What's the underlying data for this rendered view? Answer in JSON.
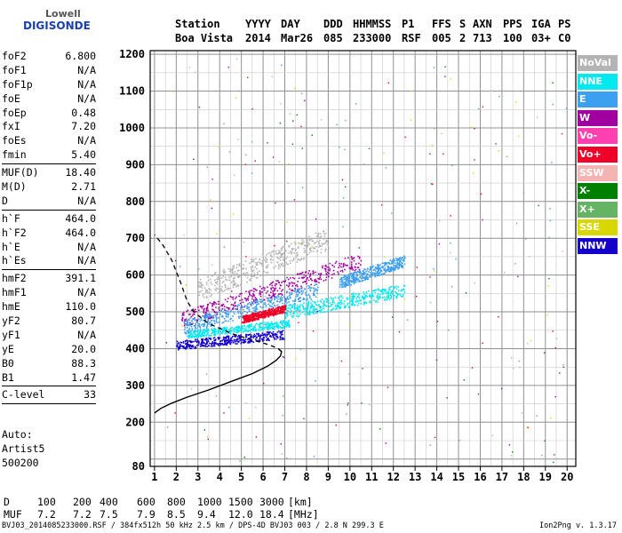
{
  "logo": {
    "line1": "Lowell",
    "line2": "DIGISONDE"
  },
  "header": {
    "labels": [
      "Station",
      "YYYY",
      "DAY",
      "DDD",
      "HHMMSS",
      "P1",
      "FFS",
      "S",
      "AXN",
      "PPS",
      "IGA",
      "PS"
    ],
    "values": [
      "Boa Vista",
      "2014",
      "Mar26",
      "085",
      "233000",
      "RSF",
      "005",
      "2",
      "713",
      "100",
      "03+",
      "C0"
    ]
  },
  "params": {
    "group1": [
      {
        "k": "foF2",
        "v": "6.800"
      },
      {
        "k": "foF1",
        "v": "N/A"
      },
      {
        "k": "foF1p",
        "v": "N/A"
      },
      {
        "k": "foE",
        "v": "N/A"
      },
      {
        "k": "foEp",
        "v": "0.48"
      },
      {
        "k": "fxI",
        "v": "7.20"
      },
      {
        "k": "foEs",
        "v": "N/A"
      },
      {
        "k": "fmin",
        "v": "5.40"
      }
    ],
    "group2": [
      {
        "k": "MUF(D)",
        "v": "18.40"
      },
      {
        "k": "M(D)",
        "v": "2.71"
      },
      {
        "k": "D",
        "v": "N/A"
      }
    ],
    "group3": [
      {
        "k": "h`F",
        "v": "464.0"
      },
      {
        "k": "h`F2",
        "v": "464.0"
      },
      {
        "k": "h`E",
        "v": "N/A"
      },
      {
        "k": "h`Es",
        "v": "N/A"
      }
    ],
    "group4": [
      {
        "k": "hmF2",
        "v": "391.1"
      },
      {
        "k": "hmF1",
        "v": "N/A"
      },
      {
        "k": "hmE",
        "v": "110.0"
      },
      {
        "k": "yF2",
        "v": "80.7"
      },
      {
        "k": "yF1",
        "v": "N/A"
      },
      {
        "k": "yE",
        "v": "20.0"
      },
      {
        "k": "B0",
        "v": "88.3"
      },
      {
        "k": "B1",
        "v": "1.47"
      }
    ],
    "group5": [
      {
        "k": "C-level",
        "v": "33"
      }
    ]
  },
  "auto": {
    "line1": "Auto:",
    "line2": "Artist5",
    "line3": "500200"
  },
  "legend": [
    {
      "label": "NoVal",
      "color": "#b4b4b4"
    },
    {
      "label": "NNE",
      "color": "#00e8f0"
    },
    {
      "label": "E",
      "color": "#3ca0f0"
    },
    {
      "label": "W",
      "color": "#a000a0"
    },
    {
      "label": "Vo-",
      "color": "#ff40b0"
    },
    {
      "label": "Vo+",
      "color": "#f00028"
    },
    {
      "label": "SSW",
      "color": "#f4b4b4"
    },
    {
      "label": "X-",
      "color": "#008000"
    },
    {
      "label": "X+",
      "color": "#64b464"
    },
    {
      "label": "SSE",
      "color": "#d8d800"
    },
    {
      "label": "NNW",
      "color": "#1400c8"
    }
  ],
  "muf_table": {
    "d_label": "D",
    "d_values": [
      "100",
      "200",
      "400",
      "600",
      "800",
      "1000",
      "1500",
      "3000"
    ],
    "d_unit": "[km]",
    "muf_label": "MUF",
    "muf_values": [
      "7.2",
      "7.2",
      "7.5",
      "7.9",
      "8.5",
      "9.4",
      "12.0",
      "18.4"
    ],
    "muf_unit": "[MHz]"
  },
  "footer": {
    "left": "BVJ03_2014085233000.RSF / 384fx512h 50 kHz 2.5 km / DPS-4D BVJ03 003 / 2.8 N 299.3 E",
    "right": "Ion2Png v. 1.3.17"
  },
  "chart_data": {
    "type": "scatter",
    "x_ticks": [
      1,
      2,
      3,
      4,
      5,
      6,
      7,
      8,
      9,
      10,
      11,
      12,
      13,
      14,
      15,
      16,
      17,
      18,
      19,
      20
    ],
    "y_ticks": [
      80,
      200,
      300,
      400,
      500,
      600,
      700,
      800,
      900,
      1000,
      1100,
      1200
    ],
    "xlim": [
      0.8,
      20.4
    ],
    "ylim": [
      80,
      1210
    ],
    "grid": true,
    "legend_position": "right",
    "profile_curve": [
      [
        1.0,
        225
      ],
      [
        1.3,
        238
      ],
      [
        1.8,
        252
      ],
      [
        2.5,
        268
      ],
      [
        3.5,
        288
      ],
      [
        4.5,
        310
      ],
      [
        5.5,
        332
      ],
      [
        6.2,
        352
      ],
      [
        6.6,
        368
      ],
      [
        6.8,
        380
      ],
      [
        6.85,
        392
      ],
      [
        6.7,
        400
      ],
      [
        6.3,
        410
      ],
      [
        5.6,
        422
      ],
      [
        4.6,
        440
      ],
      [
        3.5,
        468
      ],
      [
        2.8,
        500
      ],
      [
        2.5,
        530
      ],
      [
        2.2,
        580
      ],
      [
        1.8,
        640
      ],
      [
        1.4,
        680
      ],
      [
        1.0,
        710
      ]
    ],
    "traces": [
      {
        "series": "NNW",
        "x": [
          2.0,
          7.0
        ],
        "y": [
          410,
          440
        ],
        "spread": 12
      },
      {
        "series": "NNE",
        "x": [
          2.5,
          7.2
        ],
        "y": [
          440,
          470
        ],
        "spread": 10
      },
      {
        "series": "W",
        "x": [
          2.2,
          10.5
        ],
        "y": [
          480,
          640
        ],
        "spread": 22
      },
      {
        "series": "E",
        "x": [
          2.3,
          8.5
        ],
        "y": [
          460,
          560
        ],
        "spread": 20
      },
      {
        "series": "NNE",
        "x": [
          7.0,
          12.5
        ],
        "y": [
          500,
          560
        ],
        "spread": 18
      },
      {
        "series": "E",
        "x": [
          9.5,
          12.5
        ],
        "y": [
          580,
          640
        ],
        "spread": 16
      },
      {
        "series": "Vo+",
        "x": [
          5.0,
          7.0
        ],
        "y": [
          480,
          510
        ],
        "spread": 10
      },
      {
        "series": "NoVal",
        "x": [
          3.0,
          9.0
        ],
        "y": [
          560,
          700
        ],
        "spread": 30
      }
    ]
  }
}
